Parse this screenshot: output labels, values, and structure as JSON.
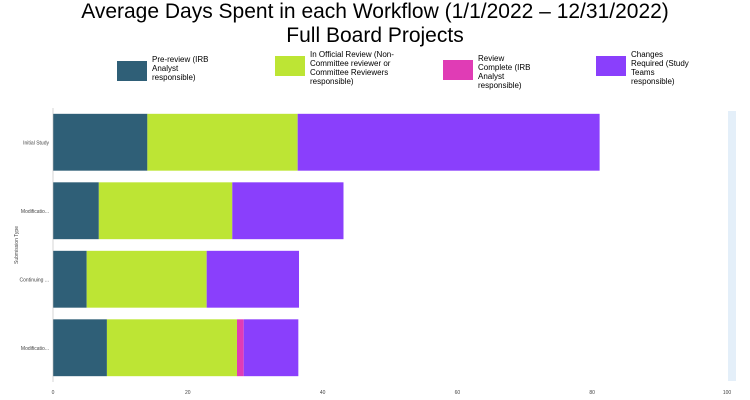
{
  "title_line1": "Average Days Spent in each Workflow (1/1/2022 – 12/31/2022)",
  "title_line2": "Full Board Projects",
  "chart_data": {
    "type": "bar",
    "orientation": "horizontal",
    "stacked": true,
    "categories": [
      "Initial Study",
      "Modificatio...",
      "Continuing ...",
      "Modificatio..."
    ],
    "ylabel": "Submission Type",
    "xlabel": "",
    "xlim": [
      0,
      100
    ],
    "xticks": [
      0,
      20,
      40,
      60,
      80,
      100
    ],
    "grid": false,
    "legend_position": "top",
    "series": [
      {
        "name": "Pre-review (IRB Analyst responsible)",
        "color": "#2f5f77",
        "values": [
          14,
          6.8,
          5,
          8
        ]
      },
      {
        "name": "In Official Review (Non-Committee reviewer or Committee Reviewers responsible)",
        "color": "#bde534",
        "values": [
          22.3,
          19.8,
          17.8,
          19.3
        ]
      },
      {
        "name": "Review Complete (IRB Analyst responsible)",
        "color": "#e03cb5",
        "values": [
          0,
          0,
          0,
          1
        ]
      },
      {
        "name": "Changes Required (Study Teams responsible)",
        "color": "#8a3ffc",
        "values": [
          44.8,
          16.5,
          13.7,
          8.1
        ]
      }
    ]
  }
}
